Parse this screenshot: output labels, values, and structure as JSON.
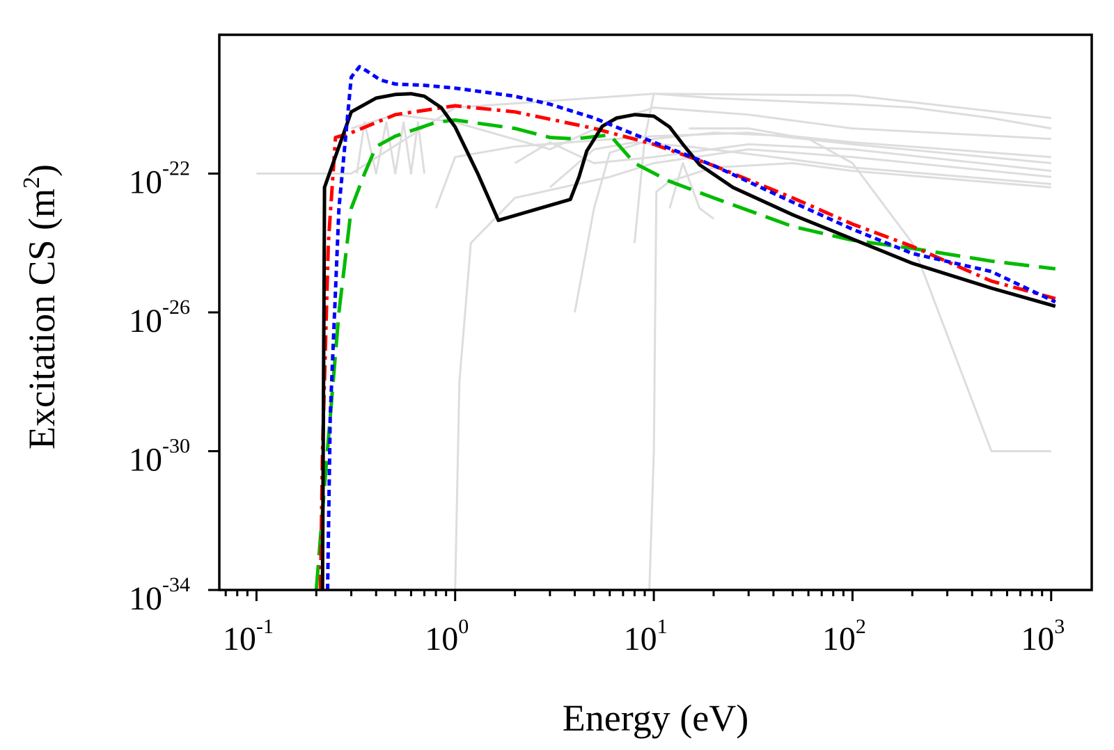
{
  "chart_data": {
    "type": "line",
    "xscale": "log",
    "yscale": "log",
    "xlim": [
      0.065,
      1600
    ],
    "ylim": [
      1e-34,
      1e-18
    ],
    "grid": false,
    "xlabel": "Energy (eV)",
    "ylabel": "Excitation CS (m",
    "ylabel_sup": "2",
    "ylabel_close": ")",
    "x_ticks": [
      {
        "base": "10",
        "exp": "-1",
        "value": 0.1
      },
      {
        "base": "10",
        "exp": "0",
        "value": 1
      },
      {
        "base": "10",
        "exp": "1",
        "value": 10
      },
      {
        "base": "10",
        "exp": "2",
        "value": 100
      },
      {
        "base": "10",
        "exp": "3",
        "value": 1000
      }
    ],
    "y_ticks": [
      {
        "base": "10",
        "exp": "-22",
        "value": 1e-22
      },
      {
        "base": "10",
        "exp": "-26",
        "value": 1e-26
      },
      {
        "base": "10",
        "exp": "-30",
        "value": 1e-30
      },
      {
        "base": "10",
        "exp": "-34",
        "value": 1e-34
      }
    ],
    "series": [
      {
        "name": "black-solid",
        "color": "#000000",
        "dash": "solid",
        "x": [
          0.215,
          0.22,
          0.3,
          0.4,
          0.5,
          0.6,
          0.7,
          0.85,
          1.0,
          1.3,
          1.65,
          2.5,
          3.8,
          4.2,
          4.6,
          5.5,
          6.5,
          8.0,
          10.0,
          12.0,
          14.0,
          17.0,
          25.0,
          50.0,
          100.0,
          200.0,
          500.0,
          1050.0
        ],
        "y": [
          1e-34,
          4e-23,
          6e-21,
          1.5e-20,
          1.9e-20,
          2e-20,
          1.7e-20,
          8e-21,
          2.2e-21,
          1e-22,
          4.5e-24,
          9e-24,
          1.8e-23,
          8e-23,
          4.5e-22,
          2.3e-21,
          4e-21,
          5e-21,
          4.5e-21,
          2.2e-21,
          7e-22,
          1.8e-22,
          4e-23,
          6.5e-24,
          1.3e-24,
          2.6e-25,
          5e-26,
          1.5e-26
        ]
      },
      {
        "name": "blue-dotted",
        "color": "#0000ff",
        "dash": "dotted",
        "x": [
          0.228,
          0.235,
          0.26,
          0.3,
          0.33,
          0.36,
          0.42,
          0.5,
          0.7,
          1.0,
          2.0,
          3.0,
          5.0,
          10.0,
          20.0,
          50.0,
          100.0,
          200.0,
          500.0,
          1050.0
        ],
        "y": [
          1e-34,
          1e-29,
          1e-23,
          6e-20,
          1.2e-19,
          9e-20,
          5e-20,
          3.8e-20,
          3.5e-20,
          2.9e-20,
          1.7e-20,
          1e-20,
          4e-21,
          8e-22,
          1.7e-22,
          1.5e-23,
          2.5e-24,
          5e-25,
          1.5e-25,
          2e-26
        ]
      },
      {
        "name": "red-dashdot",
        "color": "#ff0000",
        "dash": "dashdot",
        "x": [
          0.21,
          0.215,
          0.23,
          0.25,
          0.3,
          0.5,
          1.0,
          2.0,
          5.0,
          10.0,
          20.0,
          50.0,
          100.0,
          200.0,
          500.0,
          1050.0
        ],
        "y": [
          1e-34,
          1e-30,
          1e-24,
          1.1e-21,
          1.5e-21,
          5e-21,
          9e-21,
          6e-21,
          2e-21,
          7e-22,
          1.7e-22,
          2e-23,
          3.5e-24,
          8e-25,
          8e-26,
          2.5e-26
        ]
      },
      {
        "name": "green-dashed",
        "color": "#00bb00",
        "dash": "dashed",
        "x": [
          0.2,
          0.22,
          0.26,
          0.3,
          0.35,
          0.4,
          0.5,
          0.8,
          1.0,
          2.0,
          3.0,
          4.0,
          6.0,
          8.0,
          12.0,
          20.0,
          50.0,
          100.0,
          200.0,
          500.0,
          1050.0
        ],
        "y": [
          1e-34,
          1e-31,
          1e-26,
          1e-23,
          1e-22,
          6e-22,
          1.2e-21,
          3e-21,
          3.5e-21,
          2e-21,
          1.1e-21,
          1e-21,
          1.3e-21,
          2e-22,
          6e-23,
          2e-23,
          3e-24,
          1.2e-24,
          7e-25,
          3e-25,
          1.8e-25
        ]
      }
    ],
    "background_series": [
      {
        "name": "gray-flat-top",
        "color": "#dddddd",
        "x": [
          0.1,
          0.3,
          1.0,
          10.0,
          100.0,
          1000.0
        ],
        "y": [
          1e-22,
          1e-22,
          8e-21,
          2e-20,
          1.8e-20,
          4e-21
        ]
      },
      {
        "name": "gray-1",
        "color": "#dddddd",
        "x": [
          0.3,
          0.5,
          1.0,
          3.0,
          6.0,
          10.0,
          30.0,
          100.0,
          1000.0
        ],
        "y": [
          2e-21,
          5e-21,
          3e-21,
          5e-22,
          3e-21,
          8e-21,
          5e-21,
          2e-21,
          1e-21
        ]
      },
      {
        "name": "gray-2",
        "color": "#dddddd",
        "x": [
          0.8,
          1.0,
          2.0,
          5.0,
          10.0,
          30.0,
          100.0,
          1000.0
        ],
        "y": [
          1e-23,
          3e-22,
          6e-22,
          9e-22,
          1.2e-21,
          1.5e-21,
          7e-22,
          2e-22
        ]
      },
      {
        "name": "gray-3",
        "color": "#dddddd",
        "x": [
          1.0,
          1.05,
          1.2,
          2.0,
          6.0,
          10.0,
          30.0,
          100.0,
          1000.0
        ],
        "y": [
          1e-34,
          1e-28,
          1e-24,
          2e-23,
          8e-23,
          2e-22,
          5e-22,
          3e-22,
          8e-23
        ]
      },
      {
        "name": "gray-4",
        "color": "#dddddd",
        "x": [
          4.0,
          5.0,
          6.0,
          10.0,
          20.0,
          50.0,
          100.0,
          1000.0
        ],
        "y": [
          1e-26,
          1e-23,
          4e-22,
          1e-21,
          1.5e-21,
          1.2e-21,
          8e-22,
          3e-22
        ]
      },
      {
        "name": "gray-5",
        "color": "#dddddd",
        "x": [
          9.5,
          10.0,
          10.3,
          12.0,
          20.0,
          50.0,
          100.0,
          1000.0
        ],
        "y": [
          1e-34,
          1e-30,
          3e-23,
          6e-23,
          1.5e-22,
          2e-22,
          1.2e-22,
          4e-23
        ]
      },
      {
        "name": "gray-6",
        "color": "#dddddd",
        "x": [
          8.0,
          9.0,
          10.0,
          20.0,
          100.0,
          200.0,
          500.0,
          1000.0
        ],
        "y": [
          1e-24,
          1e-21,
          2e-20,
          1.5e-20,
          1e-20,
          8e-21,
          4e-21,
          2e-21
        ]
      },
      {
        "name": "gray-drop",
        "color": "#dddddd",
        "x": [
          15.0,
          30.0,
          60.0,
          100.0,
          200.0,
          500.0,
          1000.0
        ],
        "y": [
          2e-21,
          2e-21,
          1e-21,
          2e-22,
          1e-24,
          1e-30,
          1e-30
        ]
      },
      {
        "name": "gray-7",
        "color": "#dddddd",
        "x": [
          12.0,
          14.0,
          17.0,
          20.0
        ],
        "y": [
          1e-23,
          2e-22,
          1e-23,
          5e-24
        ]
      },
      {
        "name": "gray-8",
        "color": "#dddddd",
        "x": [
          0.32,
          0.35,
          0.4,
          0.45,
          0.5,
          0.55,
          0.6,
          0.65,
          0.7
        ],
        "y": [
          1e-22,
          3e-21,
          1e-22,
          3e-21,
          1e-22,
          3e-21,
          1e-22,
          3e-21,
          1e-22
        ]
      },
      {
        "name": "gray-9",
        "color": "#dddddd",
        "x": [
          2.0,
          3.0,
          5.0,
          10.0,
          30.0,
          100.0,
          1000.0
        ],
        "y": [
          2e-22,
          8e-22,
          2e-22,
          3e-22,
          7e-22,
          5e-22,
          1.2e-22
        ]
      },
      {
        "name": "gray-10",
        "color": "#dddddd",
        "x": [
          3.0,
          5.0,
          8.0,
          15.0,
          40.0,
          100.0,
          1000.0
        ],
        "y": [
          4e-23,
          5e-22,
          8e-22,
          6e-22,
          3e-22,
          1.5e-22,
          5e-23
        ]
      }
    ]
  }
}
